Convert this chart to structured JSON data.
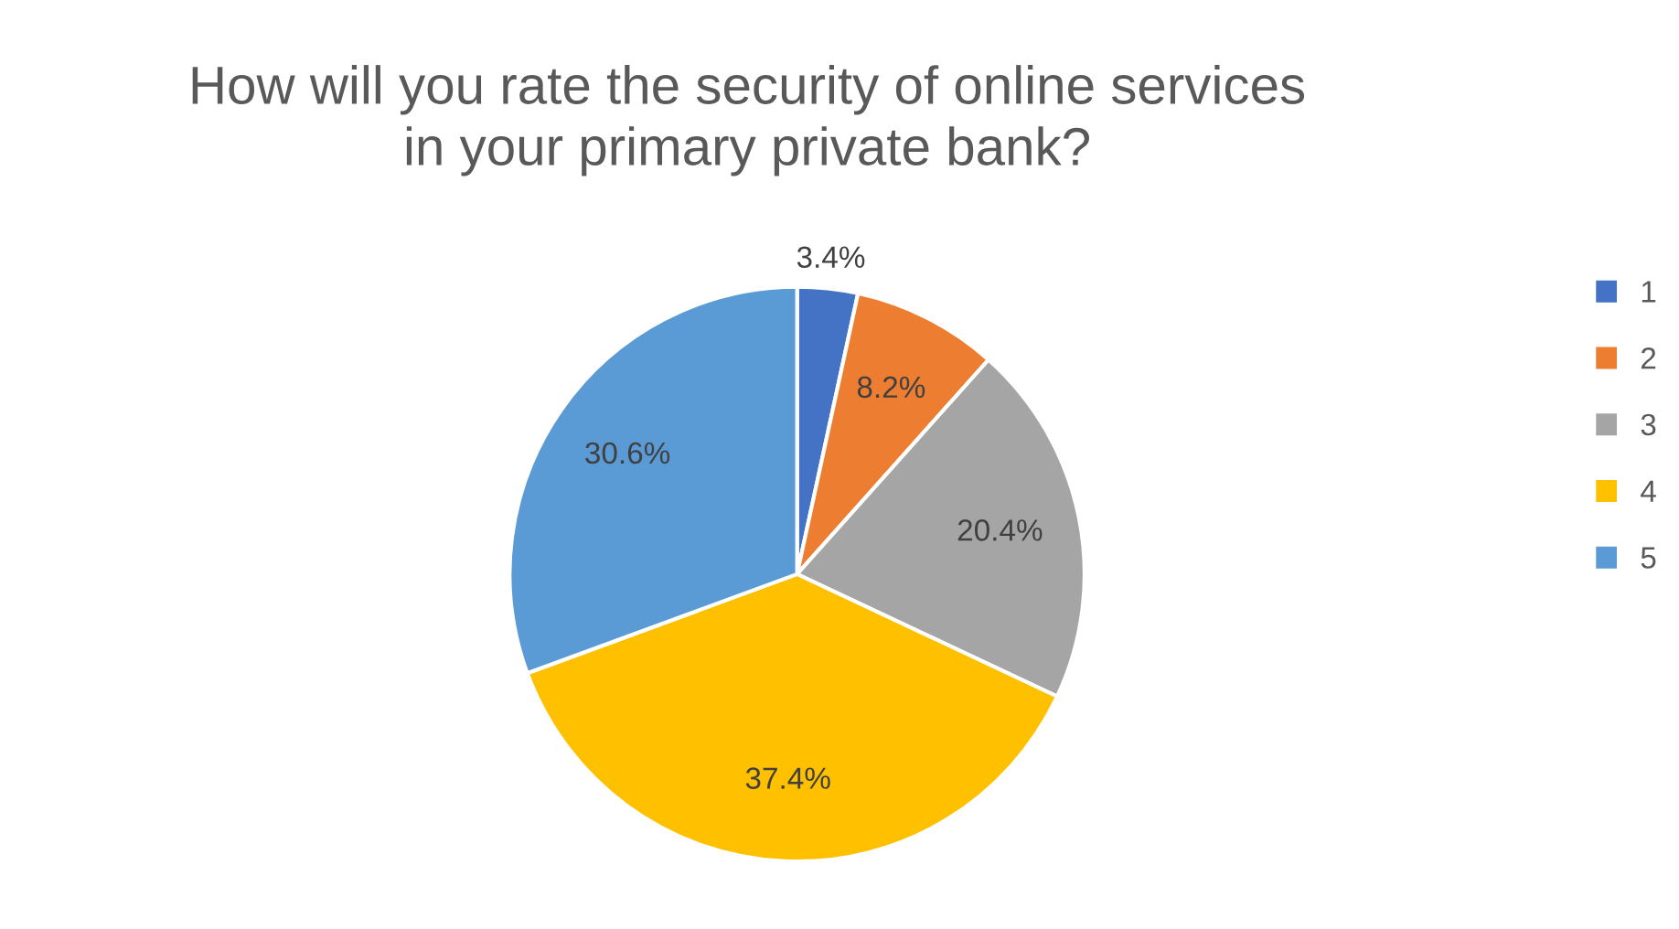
{
  "chart_data": {
    "type": "pie",
    "title": "How will you rate the security of online services\nin your primary private bank?",
    "categories": [
      "1",
      "2",
      "3",
      "4",
      "5"
    ],
    "values": [
      3.4,
      8.2,
      20.4,
      37.4,
      30.6
    ],
    "value_labels": [
      "3.4%",
      "8.2%",
      "20.4%",
      "37.4%",
      "30.6%"
    ],
    "colors": [
      "#4472c4",
      "#ed7d31",
      "#a5a5a5",
      "#ffc000",
      "#5b9bd5"
    ],
    "legend": "right"
  }
}
